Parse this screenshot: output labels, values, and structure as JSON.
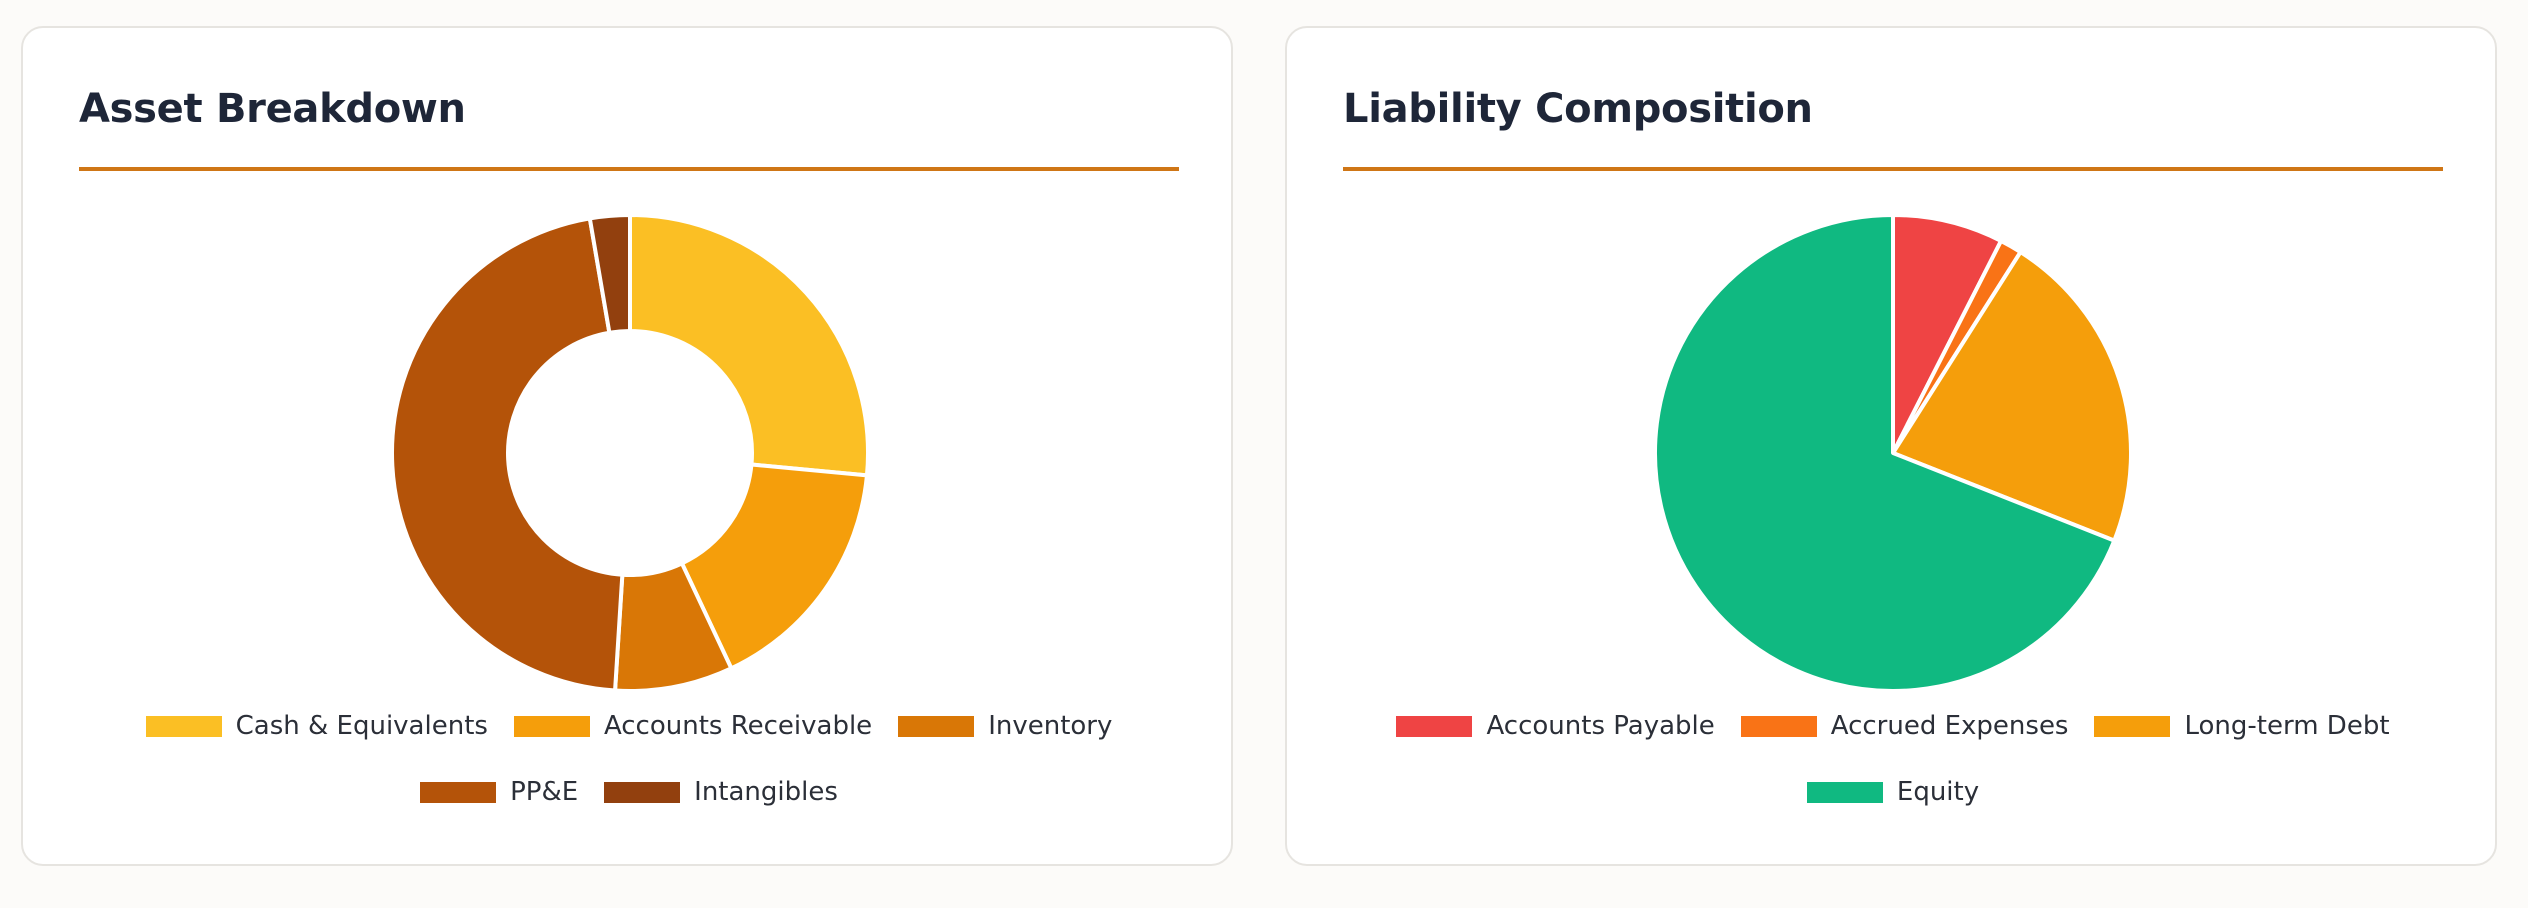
{
  "chart_data": [
    {
      "type": "pie",
      "variant": "doughnut",
      "title": "Asset Breakdown",
      "categories": [
        "Cash & Equivalents",
        "Accounts Receivable",
        "Inventory",
        "PP&E",
        "Intangibles"
      ],
      "values": [
        26.5,
        16.5,
        8.0,
        46.3,
        2.7
      ],
      "colors": [
        "#fbbf24",
        "#f59e0b",
        "#d97706",
        "#b45309",
        "#92400e"
      ],
      "legend": "bottom",
      "legend_rows": [
        3,
        2
      ]
    },
    {
      "type": "pie",
      "title": "Liability Composition",
      "categories": [
        "Accounts Payable",
        "Accrued Expenses",
        "Long-term Debt",
        "Equity"
      ],
      "values": [
        7.5,
        1.5,
        22.0,
        69.0
      ],
      "colors": [
        "#ef4444",
        "#f97316",
        "#f59e0b",
        "#10b981"
      ],
      "legend": "bottom",
      "legend_rows": [
        3,
        1
      ]
    }
  ]
}
